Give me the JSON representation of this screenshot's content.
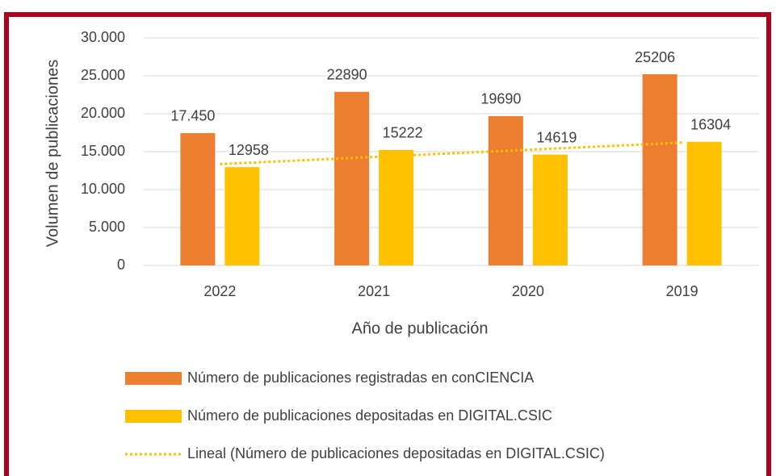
{
  "chart_data": {
    "type": "bar",
    "y_label": "Volumen de publicaciones",
    "x_label": "Año de publicación",
    "categories": [
      "2022",
      "2021",
      "2020",
      "2019"
    ],
    "series": [
      {
        "name": "Número de publicaciones registradas en conCIENCIA",
        "color": "#ed7d31",
        "values": [
          17450,
          22890,
          19690,
          25206
        ],
        "value_labels": [
          "17.450",
          "22890",
          "19690",
          "25206"
        ]
      },
      {
        "name": "Número de publicaciones depositadas en DIGITAL.CSIC",
        "color": "#ffc000",
        "values": [
          12958,
          15222,
          14619,
          16304
        ]
      }
    ],
    "trendline": {
      "label": "Lineal (Número de publicaciones depositadas en DIGITAL.CSIC)",
      "series": 1,
      "color": "#ffc000"
    },
    "ylim": [
      0,
      30000
    ],
    "yticks": [
      0,
      {
        "value": 5000,
        "label": "5.000"
      },
      {
        "value": 10000,
        "label": "10.000"
      },
      {
        "value": 15000,
        "label": "15.000"
      },
      {
        "value": 20000,
        "label": "20.000"
      },
      {
        "value": 25000,
        "label": "25.000"
      },
      {
        "value": 30000,
        "label": "30.000"
      }
    ],
    "grid": true,
    "legend": "bottom"
  }
}
